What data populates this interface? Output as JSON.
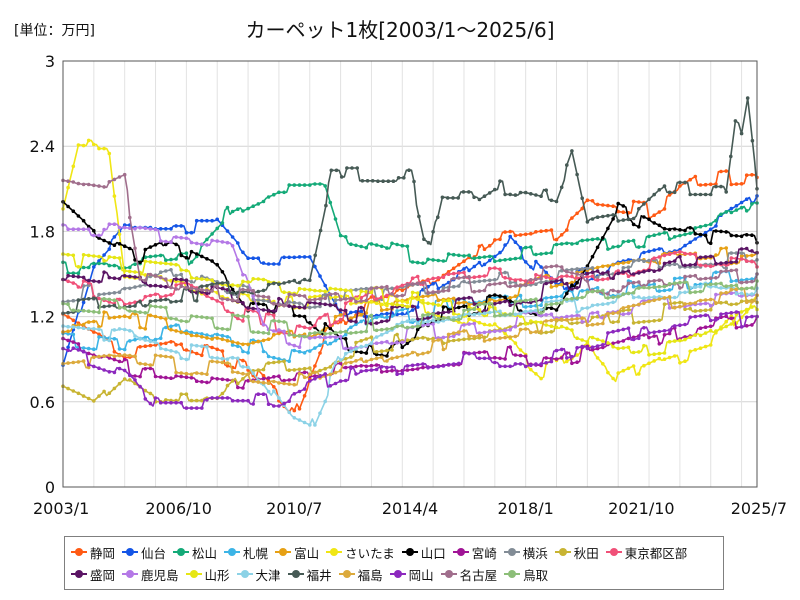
{
  "unit_label": "[単位：万円]",
  "chart_data": {
    "type": "line",
    "title": "カーペット1枚[2003/1～2025/6]",
    "xlabel": "",
    "ylabel": "",
    "ylim": [
      0,
      3
    ],
    "yticks": [
      "0",
      "0.6",
      "1.2",
      "1.8",
      "2.4",
      "3"
    ],
    "xrange": [
      2003.0,
      2025.5
    ],
    "xtick_labels": [
      "2003/1",
      "2006/10",
      "2010/7",
      "2014/4",
      "2018/1",
      "2021/10",
      "2025/7"
    ],
    "grid": "vertical-and-horizontal",
    "legend_position": "bottom",
    "series": [
      {
        "name": "静岡",
        "color": "#ff5a14",
        "points": [
          [
            2003.0,
            1.2
          ],
          [
            2005.0,
            0.95
          ],
          [
            2007.0,
            1.0
          ],
          [
            2009.0,
            0.85
          ],
          [
            2010.5,
            0.5
          ],
          [
            2011.5,
            1.05
          ],
          [
            2013.0,
            1.3
          ],
          [
            2015.0,
            1.45
          ],
          [
            2017.0,
            1.75
          ],
          [
            2019.0,
            1.8
          ],
          [
            2020.0,
            2.0
          ],
          [
            2022.0,
            1.95
          ],
          [
            2023.5,
            2.15
          ],
          [
            2025.5,
            2.18
          ]
        ]
      },
      {
        "name": "仙台",
        "color": "#1455e6",
        "points": [
          [
            2003.0,
            0.85
          ],
          [
            2004.0,
            1.6
          ],
          [
            2005.0,
            1.85
          ],
          [
            2008.0,
            1.85
          ],
          [
            2009.0,
            1.6
          ],
          [
            2011.0,
            1.6
          ],
          [
            2012.0,
            1.2
          ],
          [
            2014.0,
            1.25
          ],
          [
            2016.0,
            1.5
          ],
          [
            2017.5,
            1.75
          ],
          [
            2019.0,
            1.4
          ],
          [
            2021.0,
            1.6
          ],
          [
            2023.0,
            1.7
          ],
          [
            2025.5,
            2.05
          ]
        ]
      },
      {
        "name": "松山",
        "color": "#14aa78",
        "points": [
          [
            2003.0,
            1.55
          ],
          [
            2005.0,
            1.55
          ],
          [
            2007.0,
            1.6
          ],
          [
            2008.5,
            1.95
          ],
          [
            2010.0,
            2.1
          ],
          [
            2011.5,
            2.1
          ],
          [
            2012.0,
            1.75
          ],
          [
            2014.0,
            1.65
          ],
          [
            2016.0,
            1.6
          ],
          [
            2018.0,
            1.65
          ],
          [
            2020.0,
            1.7
          ],
          [
            2022.0,
            1.75
          ],
          [
            2024.0,
            1.85
          ],
          [
            2025.5,
            2.0
          ]
        ]
      },
      {
        "name": "札幌",
        "color": "#3cb4e6",
        "points": [
          [
            2003.0,
            1.05
          ],
          [
            2005.0,
            1.0
          ],
          [
            2007.0,
            1.1
          ],
          [
            2009.0,
            1.0
          ],
          [
            2011.0,
            0.9
          ],
          [
            2013.0,
            1.15
          ],
          [
            2015.0,
            1.25
          ],
          [
            2017.0,
            1.3
          ],
          [
            2019.0,
            1.35
          ],
          [
            2021.0,
            1.4
          ],
          [
            2023.0,
            1.45
          ],
          [
            2025.5,
            1.5
          ]
        ]
      },
      {
        "name": "富山",
        "color": "#e6a014",
        "points": [
          [
            2003.0,
            1.15
          ],
          [
            2005.0,
            1.2
          ],
          [
            2007.0,
            1.1
          ],
          [
            2009.0,
            1.0
          ],
          [
            2011.0,
            1.1
          ],
          [
            2013.0,
            1.25
          ],
          [
            2015.0,
            1.3
          ],
          [
            2017.0,
            1.35
          ],
          [
            2019.0,
            1.45
          ],
          [
            2021.0,
            1.55
          ],
          [
            2023.0,
            1.6
          ],
          [
            2025.5,
            1.65
          ]
        ]
      },
      {
        "name": "さいたま",
        "color": "#f0e614",
        "points": [
          [
            2003.0,
            1.95
          ],
          [
            2003.5,
            2.4
          ],
          [
            2004.5,
            2.4
          ],
          [
            2005.0,
            1.5
          ],
          [
            2007.0,
            1.45
          ],
          [
            2009.0,
            1.3
          ],
          [
            2011.0,
            1.3
          ],
          [
            2013.0,
            1.35
          ],
          [
            2015.0,
            1.25
          ],
          [
            2017.0,
            1.1
          ],
          [
            2018.5,
            0.8
          ],
          [
            2020.0,
            1.0
          ],
          [
            2021.0,
            0.75
          ],
          [
            2022.5,
            0.9
          ],
          [
            2024.0,
            1.0
          ],
          [
            2025.5,
            1.35
          ]
        ]
      },
      {
        "name": "山口",
        "color": "#000000",
        "points": [
          [
            2003.0,
            1.95
          ],
          [
            2004.0,
            1.75
          ],
          [
            2005.5,
            1.6
          ],
          [
            2006.5,
            1.7
          ],
          [
            2008.0,
            1.55
          ],
          [
            2009.0,
            1.25
          ],
          [
            2011.0,
            1.2
          ],
          [
            2012.0,
            1.0
          ],
          [
            2013.5,
            0.95
          ],
          [
            2015.0,
            1.2
          ],
          [
            2017.0,
            1.3
          ],
          [
            2019.0,
            1.2
          ],
          [
            2020.0,
            1.55
          ],
          [
            2021.0,
            1.95
          ],
          [
            2022.5,
            1.8
          ],
          [
            2024.0,
            1.75
          ],
          [
            2025.5,
            1.72
          ]
        ]
      },
      {
        "name": "宮崎",
        "color": "#a01496",
        "points": [
          [
            2003.0,
            1.0
          ],
          [
            2005.0,
            0.85
          ],
          [
            2007.0,
            0.8
          ],
          [
            2009.0,
            0.75
          ],
          [
            2011.0,
            0.8
          ],
          [
            2013.0,
            0.85
          ],
          [
            2015.0,
            0.9
          ],
          [
            2017.0,
            0.95
          ],
          [
            2019.0,
            0.9
          ],
          [
            2021.0,
            1.0
          ],
          [
            2023.0,
            1.1
          ],
          [
            2025.5,
            1.2
          ]
        ]
      },
      {
        "name": "横浜",
        "color": "#828c96",
        "points": [
          [
            2003.0,
            1.35
          ],
          [
            2005.0,
            1.4
          ],
          [
            2007.0,
            1.5
          ],
          [
            2009.0,
            1.35
          ],
          [
            2011.0,
            1.3
          ],
          [
            2013.0,
            1.35
          ],
          [
            2015.0,
            1.4
          ],
          [
            2017.0,
            1.45
          ],
          [
            2019.0,
            1.5
          ],
          [
            2021.0,
            1.55
          ],
          [
            2023.0,
            1.6
          ],
          [
            2025.5,
            1.6
          ]
        ]
      },
      {
        "name": "秋田",
        "color": "#c8b432",
        "points": [
          [
            2003.0,
            0.65
          ],
          [
            2004.0,
            0.55
          ],
          [
            2005.0,
            0.75
          ],
          [
            2006.0,
            0.6
          ],
          [
            2008.0,
            0.6
          ],
          [
            2009.0,
            0.8
          ],
          [
            2011.0,
            0.85
          ],
          [
            2013.0,
            1.0
          ],
          [
            2015.0,
            1.05
          ],
          [
            2017.0,
            1.1
          ],
          [
            2019.0,
            1.15
          ],
          [
            2021.0,
            1.2
          ],
          [
            2023.0,
            1.25
          ],
          [
            2025.5,
            1.3
          ]
        ]
      },
      {
        "name": "東京都区部",
        "color": "#f05078",
        "points": [
          [
            2003.0,
            1.45
          ],
          [
            2005.0,
            1.3
          ],
          [
            2007.0,
            1.4
          ],
          [
            2009.0,
            1.2
          ],
          [
            2011.0,
            1.1
          ],
          [
            2013.0,
            1.35
          ],
          [
            2015.0,
            1.5
          ],
          [
            2017.0,
            1.55
          ],
          [
            2019.0,
            1.45
          ],
          [
            2021.0,
            1.5
          ],
          [
            2023.0,
            1.6
          ],
          [
            2025.5,
            1.55
          ]
        ]
      },
      {
        "name": "盛岡",
        "color": "#5a1464",
        "points": [
          [
            2003.0,
            1.5
          ],
          [
            2005.0,
            1.45
          ],
          [
            2007.0,
            1.4
          ],
          [
            2009.0,
            1.3
          ],
          [
            2011.0,
            1.25
          ],
          [
            2013.0,
            1.2
          ],
          [
            2015.0,
            1.25
          ],
          [
            2017.0,
            1.3
          ],
          [
            2019.0,
            1.4
          ],
          [
            2021.0,
            1.5
          ],
          [
            2023.0,
            1.6
          ],
          [
            2025.5,
            1.65
          ]
        ]
      },
      {
        "name": "鹿児島",
        "color": "#b478e6",
        "points": [
          [
            2003.0,
            1.8
          ],
          [
            2005.0,
            1.8
          ],
          [
            2007.0,
            1.75
          ],
          [
            2008.5,
            1.7
          ],
          [
            2009.5,
            1.1
          ],
          [
            2011.0,
            1.0
          ],
          [
            2013.0,
            1.05
          ],
          [
            2015.0,
            1.1
          ],
          [
            2017.0,
            1.15
          ],
          [
            2019.0,
            1.2
          ],
          [
            2021.0,
            1.25
          ],
          [
            2023.0,
            1.3
          ],
          [
            2025.5,
            1.35
          ]
        ]
      },
      {
        "name": "山形",
        "color": "#e6e614",
        "points": [
          [
            2003.0,
            1.6
          ],
          [
            2005.0,
            1.55
          ],
          [
            2007.0,
            1.5
          ],
          [
            2009.0,
            1.45
          ],
          [
            2011.0,
            1.4
          ],
          [
            2013.0,
            1.35
          ],
          [
            2015.0,
            1.3
          ],
          [
            2017.0,
            1.2
          ],
          [
            2019.0,
            1.1
          ],
          [
            2021.0,
            0.95
          ],
          [
            2023.0,
            1.0
          ],
          [
            2025.5,
            1.25
          ]
        ]
      },
      {
        "name": "大津",
        "color": "#8cd2e6",
        "points": [
          [
            2003.0,
            1.1
          ],
          [
            2005.0,
            1.05
          ],
          [
            2007.0,
            0.95
          ],
          [
            2009.0,
            0.9
          ],
          [
            2010.5,
            0.45
          ],
          [
            2011.0,
            0.4
          ],
          [
            2012.0,
            0.9
          ],
          [
            2014.0,
            1.1
          ],
          [
            2016.0,
            1.2
          ],
          [
            2018.0,
            1.25
          ],
          [
            2020.0,
            1.3
          ],
          [
            2022.0,
            1.35
          ],
          [
            2025.5,
            1.4
          ]
        ]
      },
      {
        "name": "福井",
        "color": "#465a55",
        "points": [
          [
            2003.0,
            1.25
          ],
          [
            2005.0,
            1.3
          ],
          [
            2007.0,
            1.35
          ],
          [
            2009.0,
            1.4
          ],
          [
            2011.0,
            1.5
          ],
          [
            2011.7,
            2.2
          ],
          [
            2014.3,
            2.2
          ],
          [
            2014.7,
            1.8
          ],
          [
            2015.0,
            1.75
          ],
          [
            2015.3,
            2.03
          ],
          [
            2016.5,
            2.03
          ],
          [
            2017.0,
            2.1
          ],
          [
            2018.0,
            2.1
          ],
          [
            2019.0,
            2.05
          ],
          [
            2019.5,
            2.35
          ],
          [
            2020.0,
            1.85
          ],
          [
            2021.5,
            1.9
          ],
          [
            2022.5,
            2.1
          ],
          [
            2024.5,
            2.1
          ],
          [
            2024.8,
            2.6
          ],
          [
            2025.0,
            2.45
          ],
          [
            2025.2,
            2.7
          ],
          [
            2025.5,
            2.1
          ]
        ]
      },
      {
        "name": "福島",
        "color": "#dcaa3c",
        "points": [
          [
            2003.0,
            0.85
          ],
          [
            2005.0,
            0.9
          ],
          [
            2007.0,
            0.85
          ],
          [
            2009.0,
            0.8
          ],
          [
            2011.0,
            0.75
          ],
          [
            2013.0,
            0.9
          ],
          [
            2015.0,
            1.0
          ],
          [
            2017.0,
            1.1
          ],
          [
            2019.0,
            1.15
          ],
          [
            2021.0,
            1.2
          ],
          [
            2023.0,
            1.3
          ],
          [
            2025.5,
            1.35
          ]
        ]
      },
      {
        "name": "岡山",
        "color": "#8c28be",
        "points": [
          [
            2003.0,
            0.95
          ],
          [
            2005.0,
            0.8
          ],
          [
            2006.0,
            0.6
          ],
          [
            2009.0,
            0.6
          ],
          [
            2010.0,
            0.6
          ],
          [
            2011.0,
            0.7
          ],
          [
            2012.0,
            0.8
          ],
          [
            2014.0,
            0.85
          ],
          [
            2016.0,
            0.9
          ],
          [
            2018.0,
            0.9
          ],
          [
            2020.0,
            1.0
          ],
          [
            2022.0,
            1.1
          ],
          [
            2025.5,
            1.2
          ]
        ]
      },
      {
        "name": "名古屋",
        "color": "#a06e8c",
        "points": [
          [
            2003.0,
            2.15
          ],
          [
            2004.5,
            2.1
          ],
          [
            2005.0,
            2.15
          ],
          [
            2005.5,
            1.5
          ],
          [
            2007.0,
            1.4
          ],
          [
            2009.0,
            1.35
          ],
          [
            2011.0,
            1.3
          ],
          [
            2013.0,
            1.35
          ],
          [
            2015.0,
            1.4
          ],
          [
            2017.0,
            1.45
          ],
          [
            2019.0,
            1.5
          ],
          [
            2021.0,
            1.4
          ],
          [
            2023.0,
            1.45
          ],
          [
            2025.5,
            1.5
          ]
        ]
      },
      {
        "name": "鳥取",
        "color": "#8cbe78",
        "points": [
          [
            2003.0,
            1.3
          ],
          [
            2005.0,
            1.25
          ],
          [
            2007.0,
            1.2
          ],
          [
            2009.0,
            1.15
          ],
          [
            2011.0,
            1.1
          ],
          [
            2013.0,
            1.15
          ],
          [
            2015.0,
            1.2
          ],
          [
            2017.0,
            1.25
          ],
          [
            2019.0,
            1.3
          ],
          [
            2021.0,
            1.35
          ],
          [
            2023.0,
            1.4
          ],
          [
            2025.5,
            1.45
          ]
        ]
      }
    ]
  }
}
